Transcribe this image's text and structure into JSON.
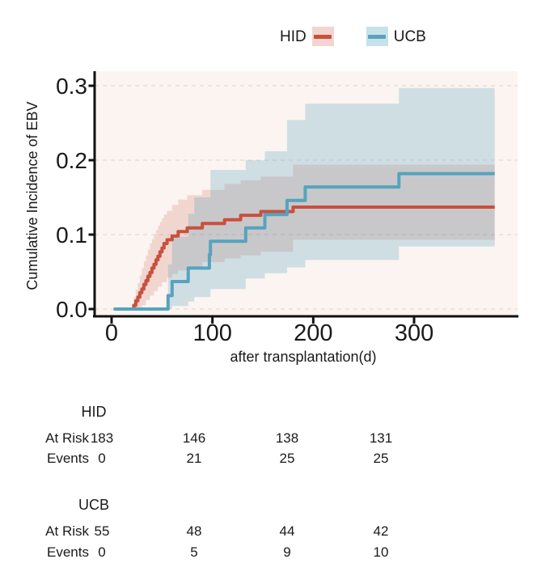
{
  "legend": {
    "items": [
      {
        "label": "HID"
      },
      {
        "label": "UCB"
      }
    ]
  },
  "chart_data": {
    "type": "line",
    "subtype": "cumulative-incidence-step-curves-with-confidence-bands",
    "title": "",
    "xlabel": "after transplantation(d)",
    "ylabel": "Cumulative Incidence of EBV",
    "xlim": [
      0,
      402
    ],
    "ylim": [
      0,
      0.32
    ],
    "x_ticks": [
      0,
      100,
      200,
      300
    ],
    "y_ticks": [
      0,
      0.1,
      0.2,
      0.3
    ],
    "y_tick_labels": [
      "0.0",
      "0.1",
      "0.2",
      "0.3"
    ],
    "grid": "horizontal-dashed",
    "legend_position": "top-center",
    "panel_background": "#fbf4f1",
    "curve_start_day": 2,
    "curve_end_day": 380,
    "series": [
      {
        "name": "HID",
        "color": "#c8503e",
        "band_opacity": 0.18,
        "final_value": 0.137,
        "steps": [
          [
            2,
            0
          ],
          [
            20,
            0
          ],
          [
            22,
            0.005
          ],
          [
            24,
            0.011
          ],
          [
            26,
            0.016
          ],
          [
            28,
            0.022
          ],
          [
            30,
            0.027
          ],
          [
            32,
            0.033
          ],
          [
            34,
            0.038
          ],
          [
            36,
            0.044
          ],
          [
            38,
            0.049
          ],
          [
            40,
            0.055
          ],
          [
            42,
            0.06
          ],
          [
            44,
            0.066
          ],
          [
            46,
            0.071
          ],
          [
            48,
            0.077
          ],
          [
            50,
            0.082
          ],
          [
            52,
            0.088
          ],
          [
            55,
            0.093
          ],
          [
            60,
            0.098
          ],
          [
            66,
            0.104
          ],
          [
            75,
            0.109
          ],
          [
            90,
            0.115
          ],
          [
            112,
            0.12
          ],
          [
            128,
            0.126
          ],
          [
            148,
            0.131
          ],
          [
            180,
            0.137
          ]
        ],
        "upper": [
          [
            2,
            0
          ],
          [
            22,
            0.016
          ],
          [
            24,
            0.026
          ],
          [
            26,
            0.035
          ],
          [
            28,
            0.045
          ],
          [
            30,
            0.055
          ],
          [
            32,
            0.064
          ],
          [
            34,
            0.072
          ],
          [
            36,
            0.08
          ],
          [
            38,
            0.088
          ],
          [
            40,
            0.094
          ],
          [
            42,
            0.1
          ],
          [
            44,
            0.106
          ],
          [
            46,
            0.112
          ],
          [
            48,
            0.117
          ],
          [
            50,
            0.122
          ],
          [
            52,
            0.127
          ],
          [
            55,
            0.132
          ],
          [
            60,
            0.14
          ],
          [
            66,
            0.147
          ],
          [
            75,
            0.153
          ],
          [
            90,
            0.16
          ],
          [
            112,
            0.168
          ],
          [
            128,
            0.173
          ],
          [
            148,
            0.178
          ],
          [
            180,
            0.194
          ]
        ],
        "lower": [
          [
            2,
            0
          ],
          [
            30,
            0.005
          ],
          [
            34,
            0.012
          ],
          [
            38,
            0.018
          ],
          [
            42,
            0.024
          ],
          [
            46,
            0.03
          ],
          [
            50,
            0.036
          ],
          [
            55,
            0.042
          ],
          [
            60,
            0.047
          ],
          [
            66,
            0.052
          ],
          [
            75,
            0.057
          ],
          [
            90,
            0.063
          ],
          [
            112,
            0.068
          ],
          [
            128,
            0.072
          ],
          [
            148,
            0.077
          ],
          [
            180,
            0.093
          ]
        ]
      },
      {
        "name": "UCB",
        "color": "#57a3bd",
        "band_opacity": 0.27,
        "final_value": 0.182,
        "steps": [
          [
            2,
            0
          ],
          [
            55,
            0
          ],
          [
            56,
            0.018
          ],
          [
            60,
            0.037
          ],
          [
            76,
            0.055
          ],
          [
            97,
            0.073
          ],
          [
            98,
            0.091
          ],
          [
            133,
            0.109
          ],
          [
            152,
            0.127
          ],
          [
            174,
            0.146
          ],
          [
            192,
            0.164
          ],
          [
            285,
            0.182
          ]
        ],
        "upper": [
          [
            2,
            0
          ],
          [
            56,
            0.06
          ],
          [
            60,
            0.097
          ],
          [
            76,
            0.128
          ],
          [
            82,
            0.15
          ],
          [
            98,
            0.187
          ],
          [
            133,
            0.2
          ],
          [
            152,
            0.212
          ],
          [
            174,
            0.254
          ],
          [
            192,
            0.276
          ],
          [
            285,
            0.297
          ]
        ],
        "lower": [
          [
            2,
            0
          ],
          [
            60,
            0.004
          ],
          [
            76,
            0.01
          ],
          [
            82,
            0.016
          ],
          [
            98,
            0.027
          ],
          [
            133,
            0.041
          ],
          [
            152,
            0.048
          ],
          [
            174,
            0.056
          ],
          [
            192,
            0.066
          ],
          [
            285,
            0.084
          ]
        ]
      }
    ]
  },
  "risk_tables": [
    {
      "group": "HID",
      "rows": [
        {
          "label": "At Risk",
          "values": [
            183,
            146,
            138,
            131
          ]
        },
        {
          "label": "Events",
          "values": [
            0,
            21,
            25,
            25
          ]
        }
      ]
    },
    {
      "group": "UCB",
      "rows": [
        {
          "label": "At Risk",
          "values": [
            55,
            48,
            44,
            42
          ]
        },
        {
          "label": "Events",
          "values": [
            0,
            5,
            9,
            10
          ]
        }
      ]
    }
  ]
}
